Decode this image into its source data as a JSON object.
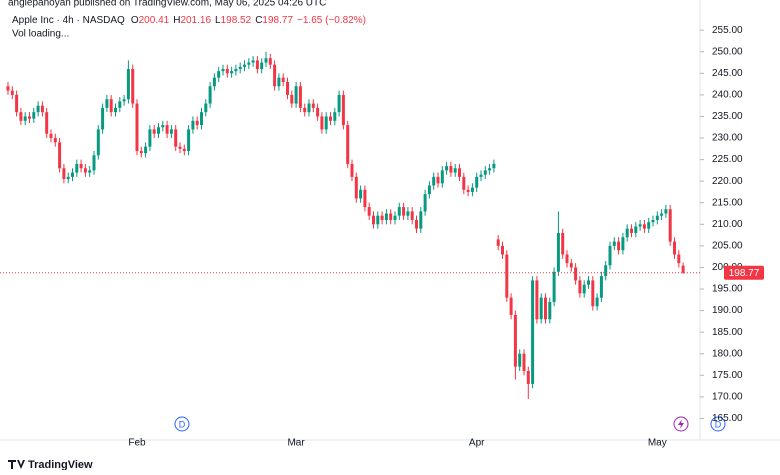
{
  "chart_data": {
    "type": "candlestick",
    "published": "angiepanoyan published on TradingView.com, May 06, 2025 04:26 UTC",
    "symbol": "Apple Inc · 4h · NASDAQ",
    "ohlc_labels": [
      "O",
      "H",
      "L",
      "C"
    ],
    "change": "−1.65 (−0.82%)",
    "volume_status": "Vol loading...",
    "event_marker": "D",
    "brand": "TradingView",
    "up_color": "#089981",
    "down_color": "#f23645",
    "ylim": [
      160,
      262
    ],
    "yticks": [
      {
        "value": 165,
        "label": "165.00"
      },
      {
        "value": 170,
        "label": "170.00"
      },
      {
        "value": 175,
        "label": "175.00"
      },
      {
        "value": 180,
        "label": "180.00"
      },
      {
        "value": 185,
        "label": "185.00"
      },
      {
        "value": 190,
        "label": "190.00"
      },
      {
        "value": 195,
        "label": "195.00"
      },
      {
        "value": 200,
        "label": "200.00"
      },
      {
        "value": 205,
        "label": "205.00"
      },
      {
        "value": 210,
        "label": "210.00"
      },
      {
        "value": 215,
        "label": "215.00"
      },
      {
        "value": 220,
        "label": "220.00"
      },
      {
        "value": 225,
        "label": "225.00"
      },
      {
        "value": 230,
        "label": "230.00"
      },
      {
        "value": 235,
        "label": "235.00"
      },
      {
        "value": 240,
        "label": "240.00"
      },
      {
        "value": 245,
        "label": "245.00"
      },
      {
        "value": 250,
        "label": "250.00"
      },
      {
        "value": 255,
        "label": "255.00"
      }
    ],
    "xticks": [
      {
        "value": 30,
        "label": "Feb"
      },
      {
        "value": 67,
        "label": "Mar"
      },
      {
        "value": 109,
        "label": "Apr"
      },
      {
        "value": 151,
        "label": "May"
      }
    ],
    "open": [
      242,
      241,
      240,
      236,
      234,
      235,
      234.5,
      236,
      237.5,
      236,
      231,
      230,
      229,
      223,
      220.5,
      221,
      222,
      224,
      223,
      222,
      222.5,
      226,
      232,
      237,
      239,
      236,
      237,
      238.5,
      239,
      246,
      238,
      227,
      226.5,
      228,
      232,
      231,
      232.5,
      233,
      231,
      232,
      228,
      227.5,
      227,
      232,
      234,
      233,
      236,
      238,
      242,
      244,
      245.5,
      246,
      245,
      245.5,
      246,
      246.5,
      247,
      247.5,
      248,
      246,
      247.5,
      248.5,
      247,
      242,
      244,
      243,
      240,
      238,
      242,
      237,
      236,
      238,
      237,
      235,
      232,
      235,
      234,
      236,
      240,
      233,
      224,
      221,
      216,
      218,
      214,
      212,
      210,
      212,
      211,
      212.5,
      211,
      212,
      214,
      212,
      213,
      211,
      209,
      213,
      217,
      219,
      221,
      219.5,
      222.5,
      223.5,
      222,
      223,
      221,
      218,
      217.5,
      218.5,
      221,
      221.5,
      222.5,
      223,
      206.5,
      205,
      203,
      193,
      189,
      177,
      180,
      176,
      173,
      197,
      188,
      193,
      188,
      192,
      199,
      208,
      203,
      201,
      200,
      197,
      194,
      196,
      197,
      191,
      193,
      198,
      200.5,
      205,
      206,
      204,
      207,
      209,
      208,
      209.5,
      210,
      209,
      210.5,
      211,
      212,
      212.5,
      213.5,
      206,
      203,
      200.41
    ],
    "high": [
      243,
      242,
      241,
      237,
      236,
      236,
      237,
      238.5,
      238.5,
      237,
      232,
      231,
      230,
      224,
      222,
      223,
      225,
      225,
      224,
      223.5,
      227,
      233,
      238,
      240,
      240,
      238,
      239.5,
      240,
      248,
      247,
      239,
      228,
      229,
      233,
      233,
      233.5,
      234,
      234,
      233,
      233,
      229,
      228.5,
      233,
      235,
      235,
      237,
      239,
      243,
      245,
      246.5,
      247,
      247,
      246.5,
      247,
      247.5,
      248,
      248.5,
      249,
      249,
      248.5,
      250,
      249.5,
      248,
      245,
      245,
      244,
      241,
      243,
      243,
      238,
      239,
      239,
      238,
      236,
      236,
      236,
      237,
      241,
      241,
      234,
      225,
      222,
      219,
      219,
      215,
      213,
      213,
      213,
      213.5,
      213.5,
      213,
      215,
      215,
      214,
      214,
      212,
      214,
      218,
      220,
      222,
      222,
      223.5,
      224.5,
      224.5,
      224,
      224,
      222,
      219,
      219.5,
      222,
      222.5,
      223.5,
      224,
      225,
      207.5,
      206,
      204,
      194,
      190,
      181,
      181,
      177,
      198,
      198,
      194,
      194,
      193,
      200,
      213,
      209,
      204,
      202,
      201,
      198,
      197,
      198,
      198,
      194,
      199,
      201.5,
      206,
      207,
      207,
      208,
      210,
      210,
      210.5,
      211,
      211,
      211.5,
      212,
      213,
      213.5,
      214.5,
      214.5,
      207,
      204,
      201.16
    ],
    "low": [
      240,
      239,
      235,
      233,
      233,
      233.5,
      233.5,
      235,
      235,
      230,
      229,
      228,
      222,
      219.5,
      219.5,
      220,
      221,
      222,
      221,
      221,
      221.5,
      225,
      231,
      236,
      235,
      235,
      236,
      237.5,
      238,
      237,
      226,
      225.5,
      225.5,
      227,
      230,
      230,
      231.5,
      230,
      230,
      227,
      226.5,
      226,
      226,
      231,
      232,
      232,
      235,
      237,
      241,
      243,
      244.5,
      244,
      244,
      244.5,
      245,
      245.5,
      246,
      246.5,
      245,
      245,
      246.5,
      246,
      241,
      241,
      242,
      239,
      237,
      237,
      236,
      235,
      235,
      236,
      234,
      231,
      231,
      233,
      233,
      235,
      232,
      223,
      220,
      215,
      215,
      213,
      211,
      209,
      209,
      210,
      210,
      210,
      210,
      211,
      211,
      211,
      210,
      208,
      208,
      212,
      216,
      218,
      218.5,
      218.5,
      221.5,
      221,
      221,
      220,
      217,
      216.5,
      216.5,
      217.5,
      220,
      220.5,
      221.5,
      222,
      204,
      202,
      192,
      188,
      174,
      176,
      175,
      169.5,
      172,
      187,
      187,
      187,
      187,
      191,
      198,
      202,
      200,
      199,
      196,
      193,
      193,
      195,
      190,
      190,
      192,
      197,
      199.5,
      204,
      203,
      203,
      206,
      207,
      207,
      208.5,
      208,
      208,
      209.5,
      210,
      211,
      211.5,
      205,
      202,
      200,
      198.52
    ],
    "close": [
      241,
      240,
      236,
      234,
      235,
      234.5,
      236,
      237.5,
      236,
      231,
      230,
      229,
      223,
      220.5,
      221,
      222,
      224,
      223,
      222,
      222.5,
      226,
      232,
      237,
      239,
      236,
      237,
      238.5,
      239,
      246,
      238,
      227,
      226.5,
      228,
      232,
      231,
      232.5,
      233,
      231,
      232,
      228,
      227.5,
      227,
      232,
      234,
      233,
      236,
      238,
      242,
      244,
      245.5,
      246,
      245,
      245.5,
      246,
      246.5,
      247,
      247.5,
      248,
      246,
      247.5,
      248.5,
      247,
      242,
      244,
      243,
      240,
      238,
      242,
      237,
      236,
      238,
      237,
      235,
      232,
      235,
      234,
      236,
      240,
      233,
      224,
      221,
      216,
      218,
      214,
      212,
      210,
      212,
      211,
      212.5,
      211,
      212,
      214,
      212,
      213,
      211,
      209,
      213,
      217,
      219,
      221,
      219.5,
      222.5,
      223.5,
      222,
      223,
      221,
      218,
      217.5,
      218.5,
      221,
      221.5,
      222.5,
      223,
      224,
      205,
      203,
      193,
      189,
      177,
      180,
      176,
      173,
      197,
      188,
      193,
      188,
      192,
      199,
      208,
      203,
      201,
      200,
      197,
      194,
      196,
      197,
      191,
      193,
      198,
      200.5,
      205,
      206,
      204,
      207,
      209,
      208,
      209.5,
      210,
      209,
      210.5,
      211,
      212,
      212.5,
      213.5,
      206,
      203,
      201,
      198.77
    ]
  }
}
